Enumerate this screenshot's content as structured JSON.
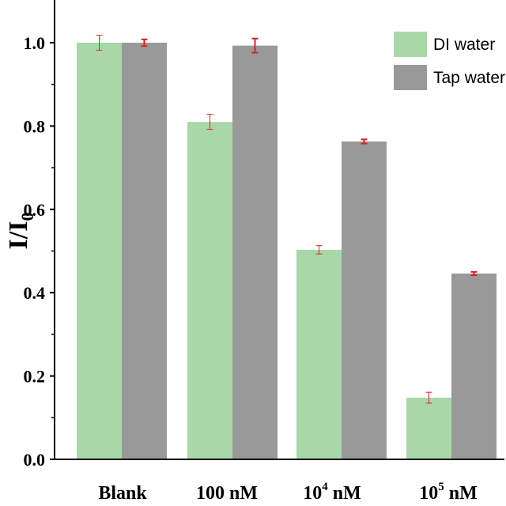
{
  "chart_data": {
    "type": "bar",
    "categories": [
      "Blank",
      "100 nM",
      "10^4 nM",
      "10^5 nM"
    ],
    "category_labels": [
      {
        "base": "Blank",
        "sup": "",
        "rest": ""
      },
      {
        "base": "100 nM",
        "sup": "",
        "rest": ""
      },
      {
        "base": "10",
        "sup": "4",
        "rest": " nM"
      },
      {
        "base": "10",
        "sup": "5",
        "rest": " nM"
      }
    ],
    "series": [
      {
        "name": "DI water",
        "color": "#a8d8a8",
        "values": [
          1.0,
          0.81,
          0.503,
          0.148
        ],
        "errors": [
          0.018,
          0.018,
          0.01,
          0.013
        ]
      },
      {
        "name": "Tap water",
        "color": "#999999",
        "values": [
          1.0,
          0.993,
          0.763,
          0.446
        ],
        "errors": [
          0.008,
          0.017,
          0.005,
          0.004
        ]
      }
    ],
    "error_bar_color": "#e02020",
    "ylabel": {
      "base": "I/I",
      "sub": "0"
    },
    "xlabel": "",
    "ylim": [
      0,
      1.05
    ],
    "yticks": [
      "0.0",
      "0.2",
      "0.4",
      "0.6",
      "0.8",
      "1.0"
    ],
    "grid": false,
    "legend_position": "top-right"
  }
}
